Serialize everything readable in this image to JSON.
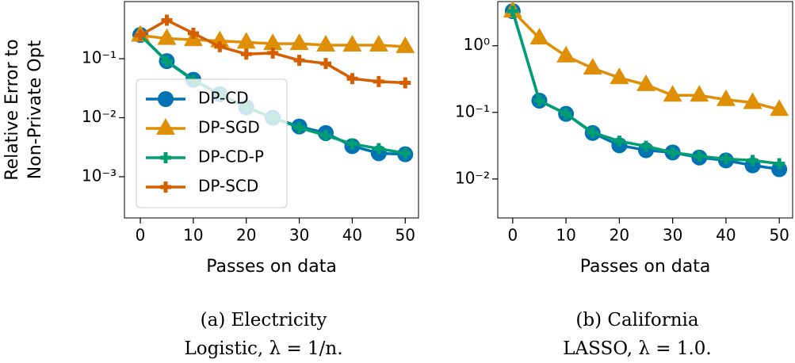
{
  "chart_data": [
    {
      "type": "line",
      "ylabel": [
        "Relative Error to",
        "Non-Private Opt"
      ],
      "xlabel": "Passes on data",
      "caption": [
        "(a) Electricity",
        "Logistic, λ = 1/n."
      ],
      "x": [
        0,
        5,
        10,
        15,
        20,
        25,
        30,
        35,
        40,
        45,
        50
      ],
      "xlim": [
        -3,
        52.5
      ],
      "xticks": [
        0,
        10,
        20,
        30,
        40,
        50
      ],
      "ylim": [
        0.0002,
        0.93
      ],
      "yscale": "log",
      "yticks": [
        {
          "value": 0.001,
          "label": "10⁻³"
        },
        {
          "value": 0.01,
          "label": "10⁻²"
        },
        {
          "value": 0.1,
          "label": "10⁻¹"
        }
      ],
      "legend": "lower left",
      "series": [
        {
          "name": "DP-CD",
          "color": "#0173b2",
          "marker": "circle",
          "values": [
            0.253,
            0.091,
            0.044,
            0.025,
            0.015,
            0.01,
            0.0071,
            0.0055,
            0.0033,
            0.0025,
            0.0024
          ]
        },
        {
          "name": "DP-SGD",
          "color": "#de8f05",
          "marker": "triangle",
          "values": [
            0.25,
            0.22,
            0.21,
            0.2,
            0.19,
            0.18,
            0.18,
            0.17,
            0.17,
            0.17,
            0.16
          ]
        },
        {
          "name": "DP-CD-P",
          "color": "#029e73",
          "marker": "plus",
          "values": [
            0.25,
            0.09,
            0.043,
            0.025,
            0.015,
            0.01,
            0.0068,
            0.005,
            0.0036,
            0.003,
            0.0025
          ]
        },
        {
          "name": "DP-SCD",
          "color": "#d55e00",
          "marker": "plus",
          "values": [
            0.25,
            0.45,
            0.27,
            0.16,
            0.12,
            0.125,
            0.094,
            0.083,
            0.046,
            0.041,
            0.039
          ]
        }
      ]
    },
    {
      "type": "line",
      "xlabel": "Passes on data",
      "caption": [
        "(b) California",
        "LASSO, λ = 1.0."
      ],
      "x": [
        0,
        5,
        10,
        15,
        20,
        25,
        30,
        35,
        40,
        45,
        50
      ],
      "xlim": [
        -2.8,
        52.5
      ],
      "xticks": [
        0,
        10,
        20,
        30,
        40,
        50
      ],
      "ylim": [
        0.0026,
        4.6
      ],
      "yscale": "log",
      "yticks": [
        {
          "value": 0.01,
          "label": "10⁻²"
        },
        {
          "value": 0.1,
          "label": "10⁻¹"
        },
        {
          "value": 1,
          "label": "10⁰"
        }
      ],
      "series": [
        {
          "name": "DP-CD",
          "color": "#0173b2",
          "marker": "circle",
          "values": [
            3.3,
            0.15,
            0.095,
            0.049,
            0.032,
            0.027,
            0.025,
            0.021,
            0.019,
            0.016,
            0.014
          ]
        },
        {
          "name": "DP-SGD",
          "color": "#de8f05",
          "marker": "triangle",
          "values": [
            3.3,
            1.3,
            0.7,
            0.46,
            0.33,
            0.26,
            0.18,
            0.18,
            0.155,
            0.14,
            0.11
          ]
        },
        {
          "name": "DP-CD-P",
          "color": "#029e73",
          "marker": "plus",
          "values": [
            3.3,
            0.15,
            0.095,
            0.05,
            0.037,
            0.031,
            0.025,
            0.022,
            0.02,
            0.019,
            0.017
          ]
        }
      ]
    }
  ]
}
